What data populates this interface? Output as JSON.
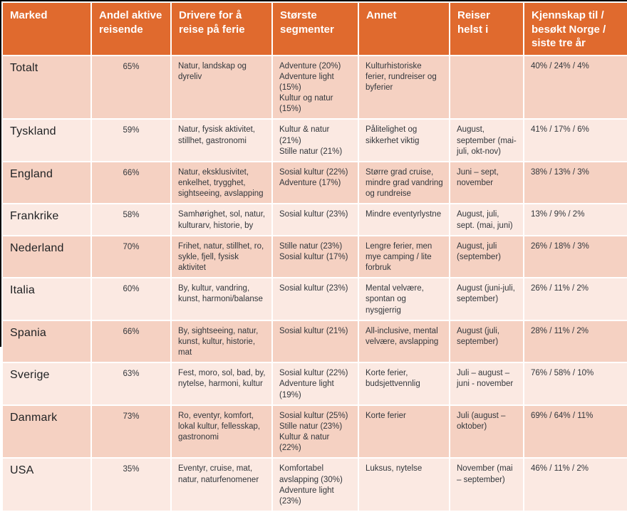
{
  "colors": {
    "header_bg": "#E06A2E",
    "row_dark": "#F5D1C2",
    "row_light": "#FBE9E2",
    "frame": "#000000",
    "header_text": "#FFFFFF",
    "body_text": "#33373C"
  },
  "chart_data": {
    "type": "table",
    "title": "",
    "columns": [
      "Marked",
      "Andel aktive reisende",
      "Drivere for å reise på ferie",
      "Største segmenter",
      "Annet",
      "Reiser helst i",
      "Kjennskap til / besøkt Norge / siste tre år"
    ],
    "rows": [
      {
        "market": "Totalt",
        "share": "65%",
        "drivers": "Natur, landskap og dyreliv",
        "segments": [
          "Adventure (20%)",
          "Adventure light (15%)",
          "Kultur og natur (15%)"
        ],
        "other": "Kulturhistoriske ferier, rundreiser og byferier",
        "prefers": "",
        "awareness": "40% / 24% / 4%"
      },
      {
        "market": "Tyskland",
        "share": "59%",
        "drivers": "Natur, fysisk aktivitet, stillhet, gastronomi",
        "segments": [
          "Kultur & natur (21%)",
          "Stille natur (21%)"
        ],
        "other": "Pålitelighet og sikkerhet viktig",
        "prefers": "August, september (mai-juli, okt-nov)",
        "awareness": "41% / 17% / 6%"
      },
      {
        "market": "England",
        "share": "66%",
        "drivers": "Natur, eksklusivitet, enkelhet, trygghet, sightseeing, avslapping",
        "segments": [
          "Sosial kultur (22%)",
          "Adventure (17%)"
        ],
        "other": "Større grad cruise, mindre grad vandring og rundreise",
        "prefers": "Juni – sept, november",
        "awareness": "38% / 13% / 3%"
      },
      {
        "market": "Frankrike",
        "share": "58%",
        "drivers": "Samhørighet, sol, natur, kulturarv, historie, by",
        "segments": [
          "Sosial kultur (23%)"
        ],
        "other": "Mindre eventyrlystne",
        "prefers": "August, juli, sept. (mai, juni)",
        "awareness": "13% / 9% / 2%"
      },
      {
        "market": "Nederland",
        "share": "70%",
        "drivers": "Frihet, natur, stillhet, ro, sykle, fjell, fysisk aktivitet",
        "segments": [
          "Stille natur (23%)",
          "Sosial kultur (17%)"
        ],
        "other": "Lengre ferier, men mye camping / lite forbruk",
        "prefers": "August, juli (september)",
        "awareness": "26% / 18% / 3%"
      },
      {
        "market": "Italia",
        "share": "60%",
        "drivers": "By, kultur, vandring, kunst, harmoni/balanse",
        "segments": [
          "Sosial kultur (23%)"
        ],
        "other": "Mental velvære, spontan og nysgjerrig",
        "prefers": "August (juni-juli, september)",
        "awareness": "26% / 11% / 2%"
      },
      {
        "market": "Spania",
        "share": "66%",
        "drivers": "By, sightseeing, natur, kunst, kultur, historie, mat",
        "segments": [
          "Sosial kultur (21%)"
        ],
        "other": "All-inclusive, mental velvære, avslapping",
        "prefers": "August (juli, september)",
        "awareness": "28% / 11% / 2%"
      },
      {
        "market": "Sverige",
        "share": "63%",
        "drivers": "Fest, moro, sol, bad, by, nytelse, harmoni, kultur",
        "segments": [
          "Sosial kultur (22%)",
          "Adventure light (19%)"
        ],
        "other": "Korte ferier, budsjettvennlig",
        "prefers": "Juli – august – juni - november",
        "awareness": "76% / 58% / 10%"
      },
      {
        "market": "Danmark",
        "share": "73%",
        "drivers": "Ro, eventyr, komfort, lokal kultur, fellesskap, gastronomi",
        "segments": [
          "Sosial kultur (25%)",
          "Stille natur (23%)",
          "Kultur & natur (22%)"
        ],
        "other": "Korte ferier",
        "prefers": "Juli (august – oktober)",
        "awareness": "69% / 64% / 11%"
      },
      {
        "market": "USA",
        "share": "35%",
        "drivers": "Eventyr, cruise, mat, natur, naturfenomener",
        "segments": [
          "Komfortabel avslapping (30%)",
          "Adventure light (23%)"
        ],
        "other": "Luksus, nytelse",
        "prefers": "November (mai – september)",
        "awareness": "46% / 11% / 2%"
      }
    ]
  }
}
